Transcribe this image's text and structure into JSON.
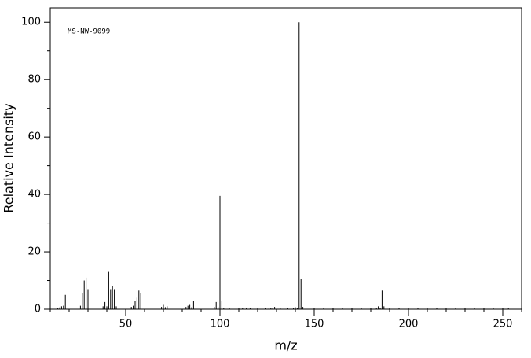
{
  "chart_data": {
    "type": "stem",
    "annotation": "MS-NW-9099",
    "x_label": "m/z",
    "y_label": "Relative Intensity",
    "color": "#000000",
    "x": [
      14,
      15,
      16,
      17,
      18,
      26,
      27,
      28,
      29,
      30,
      38,
      39,
      40,
      41,
      42,
      43,
      44,
      45,
      53,
      54,
      55,
      56,
      57,
      58,
      69,
      70,
      71,
      72,
      82,
      83,
      84,
      85,
      86,
      97,
      98,
      99,
      100,
      101,
      102,
      105,
      110,
      112,
      114,
      116,
      120,
      124,
      126,
      127,
      128,
      129,
      132,
      136,
      139,
      140,
      141,
      142,
      143,
      144,
      150,
      155,
      160,
      165,
      170,
      175,
      180,
      183,
      184,
      185,
      186,
      187,
      190,
      195,
      200,
      205,
      210,
      215,
      220,
      225,
      230,
      235,
      240,
      245,
      250,
      253
    ],
    "values": [
      0.5,
      0.6,
      1,
      1.2,
      5,
      1.2,
      5.5,
      10,
      11,
      7,
      1,
      2.5,
      1,
      13,
      7,
      8,
      7,
      1,
      0.8,
      1.2,
      3,
      4,
      6.5,
      5.5,
      0.8,
      1.5,
      0.7,
      1,
      0.8,
      1.2,
      1.5,
      0.7,
      3,
      0.8,
      2.5,
      0.8,
      39.5,
      3,
      0.5,
      0.3,
      0.3,
      0.4,
      0.3,
      0.4,
      0.3,
      0.4,
      0.4,
      0.5,
      0.3,
      0.8,
      0.3,
      0.3,
      0.4,
      0.7,
      0.5,
      100,
      10.5,
      0.8,
      0.3,
      0.3,
      0.3,
      0.3,
      0.3,
      0.3,
      0.3,
      0.4,
      1,
      0.5,
      6.5,
      1,
      0.3,
      0.3,
      0.3,
      0.3,
      0.3,
      0.3,
      0.3,
      0.3,
      0.3,
      0.3,
      0.3,
      0.3,
      0.3,
      0.3
    ],
    "xlim": [
      10,
      260
    ],
    "ylim": [
      0,
      105
    ],
    "xticks": [
      50,
      100,
      150,
      200,
      250
    ],
    "yticks": [
      0,
      20,
      40,
      60,
      80,
      100
    ],
    "xminor_ticks": [
      10,
      20,
      30,
      40,
      60,
      70,
      80,
      90,
      110,
      120,
      130,
      140,
      160,
      170,
      180,
      190,
      210,
      220,
      230,
      240,
      260
    ],
    "yminor_ticks": [
      10,
      30,
      50,
      70,
      90
    ]
  }
}
